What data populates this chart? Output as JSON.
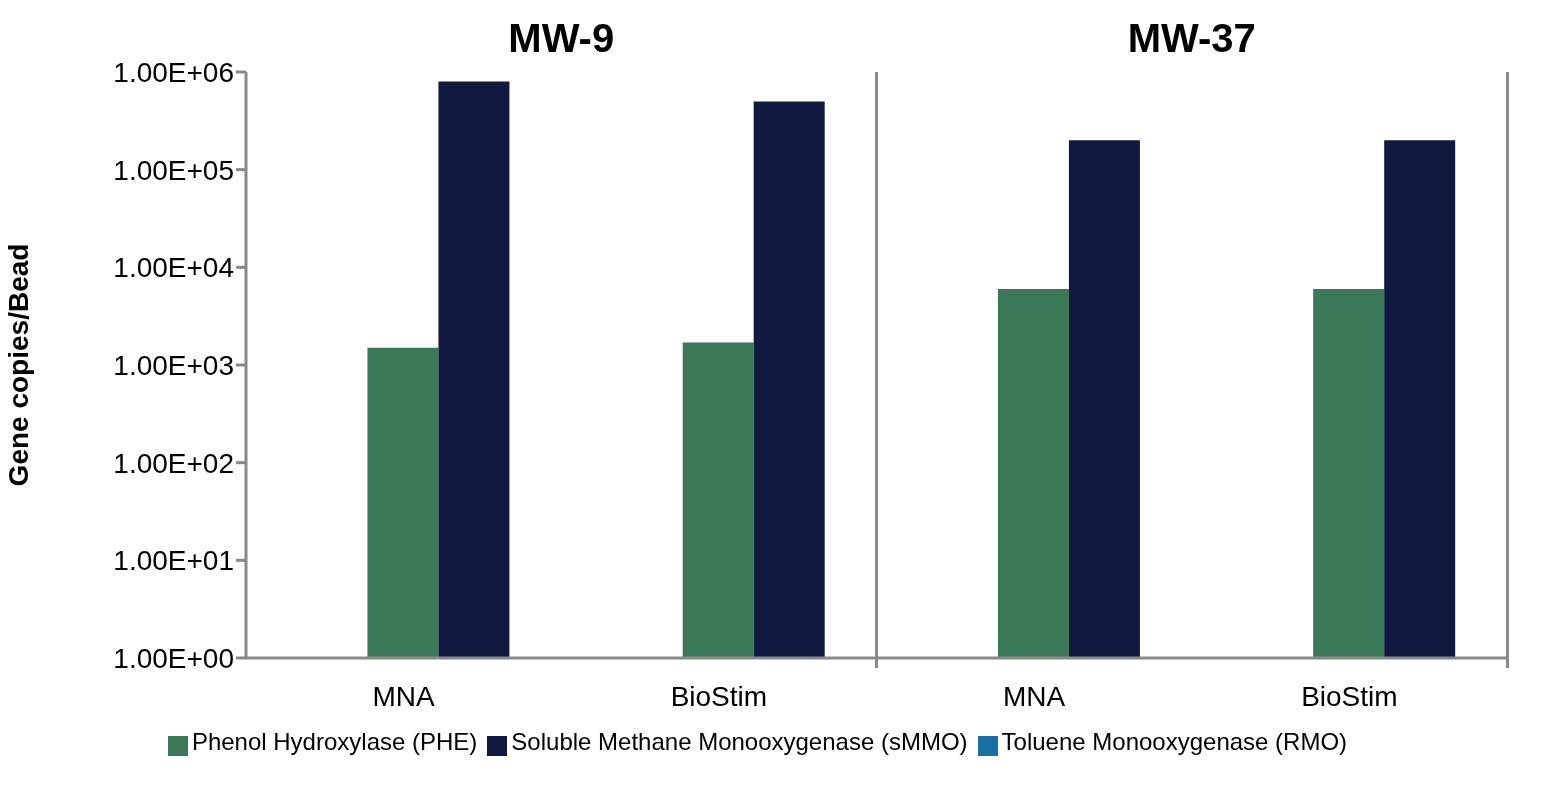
{
  "chart_data": {
    "type": "bar",
    "ylabel": "Gene copies/Bead",
    "categories": [
      "MNA",
      "BioStim",
      "MNA",
      "BioStim"
    ],
    "series": [
      {
        "name": "Toluene Monooxygenase (RMO)",
        "color": "#1a6fa3",
        "values": [
          null,
          null,
          null,
          null
        ]
      },
      {
        "name": "Phenol Hydroxylase (PHE)",
        "color": "#3a7857",
        "values": [
          1500,
          1700,
          6000,
          6000
        ]
      },
      {
        "name": "Soluble Methane Monooxygenase (sMMO)",
        "color": "#111941",
        "values": [
          800000,
          500000,
          200000,
          200000
        ]
      }
    ],
    "log": "y",
    "ylim": [
      1,
      1000000
    ],
    "yticks": [
      {
        "value": 1,
        "label": "1.00E+00"
      },
      {
        "value": 10,
        "label": "1.00E+01"
      },
      {
        "value": 100,
        "label": "1.00E+02"
      },
      {
        "value": 1000,
        "label": "1.00E+03"
      },
      {
        "value": 10000,
        "label": "1.00E+04"
      },
      {
        "value": 100000,
        "label": "1.00E+05"
      },
      {
        "value": 1000000,
        "label": "1.00E+06"
      }
    ],
    "annotations": [
      "MW-9",
      "MW-37"
    ],
    "grid": false,
    "legend": "bottom"
  }
}
